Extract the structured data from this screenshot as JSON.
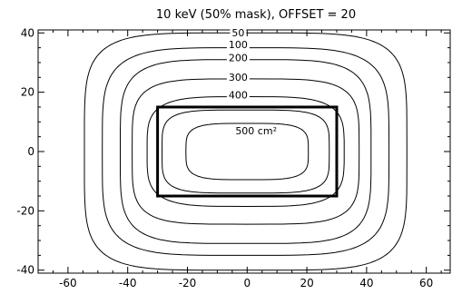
{
  "chart_data": {
    "type": "contour",
    "title": "10 keV (50% mask), OFFSET = 20",
    "xlabel": "",
    "ylabel": "",
    "xlim": [
      -70,
      68
    ],
    "ylim": [
      -41,
      41
    ],
    "xticks": [
      -60,
      -40,
      -20,
      0,
      20,
      40,
      60
    ],
    "yticks": [
      -40,
      -20,
      0,
      20,
      40
    ],
    "xtick_labels": [
      "-60",
      "-40",
      "-20",
      "0",
      "20",
      "40",
      "60"
    ],
    "ytick_labels": [
      "-40",
      "-20",
      "0",
      "20",
      "40"
    ],
    "grid": false,
    "levels": [
      {
        "value": 50,
        "label": "50",
        "label_pos": [
          -3,
          39.5
        ],
        "shape": {
          "cx": -0.5,
          "cy": 0,
          "a": 54,
          "b": 40,
          "n": 5
        }
      },
      {
        "value": 100,
        "label": "100",
        "label_pos": [
          -3,
          35.5
        ],
        "shape": {
          "cx": -0.5,
          "cy": 0,
          "a": 48,
          "b": 35,
          "n": 4.5
        }
      },
      {
        "value": 200,
        "label": "200",
        "label_pos": [
          -3,
          31
        ],
        "shape": {
          "cx": -0.5,
          "cy": 0,
          "a": 42,
          "b": 31,
          "n": 4.5
        }
      },
      {
        "value": 300,
        "label": "300",
        "label_pos": [
          -3,
          24.5
        ],
        "shape": {
          "cx": -0.5,
          "cy": 0,
          "a": 38,
          "b": 24.5,
          "n": 4.5
        }
      },
      {
        "value": 400,
        "label": "400",
        "label_pos": [
          -3,
          18.5
        ],
        "shape": {
          "cx": -0.5,
          "cy": 0,
          "a": 33,
          "b": 18.5,
          "n": 4
        }
      },
      {
        "value": 500,
        "label": "500 cm²",
        "label_pos": [
          3,
          6.5
        ],
        "shape": {
          "cx": 0,
          "cy": 0,
          "a": 20.5,
          "b": 9.5,
          "n": 4
        }
      }
    ],
    "inner_contour": {
      "shape": {
        "cx": -0.5,
        "cy": 0,
        "a": 28,
        "b": 14,
        "n": 4.5
      }
    },
    "rectangle": {
      "x0": -30,
      "x1": 30,
      "y0": -15,
      "y1": 15
    }
  }
}
